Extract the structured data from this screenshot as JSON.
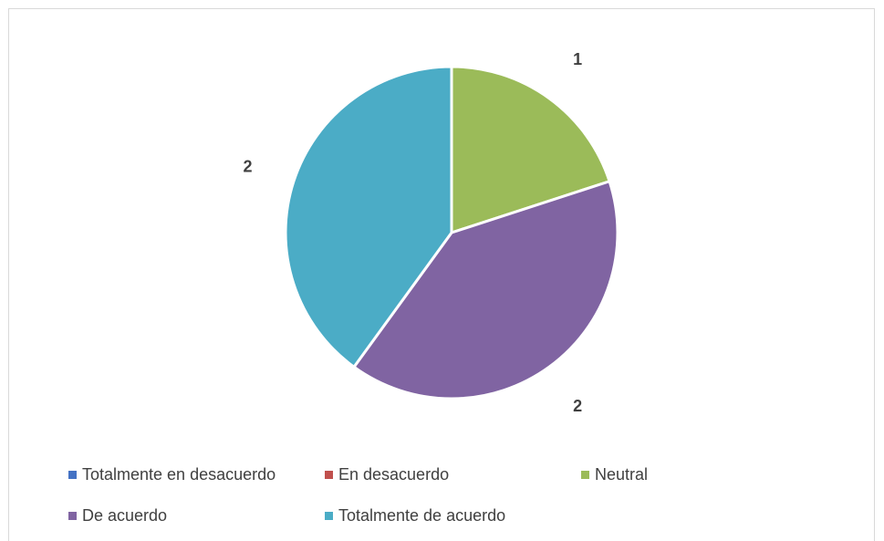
{
  "chart_data": {
    "type": "pie",
    "title": "",
    "categories": [
      "Totalmente en desacuerdo",
      "En desacuerdo",
      "Neutral",
      "De acuerdo",
      "Totalmente de acuerdo"
    ],
    "values": [
      0,
      0,
      1,
      2,
      2
    ],
    "data_labels": [
      "",
      "",
      "1",
      "2",
      "2"
    ],
    "colors": [
      "#4472C4",
      "#C0504D",
      "#9BBB59",
      "#8064A2",
      "#4BACC6"
    ],
    "start_angle_deg": 0,
    "direction": "clockwise",
    "legend_position": "bottom"
  }
}
